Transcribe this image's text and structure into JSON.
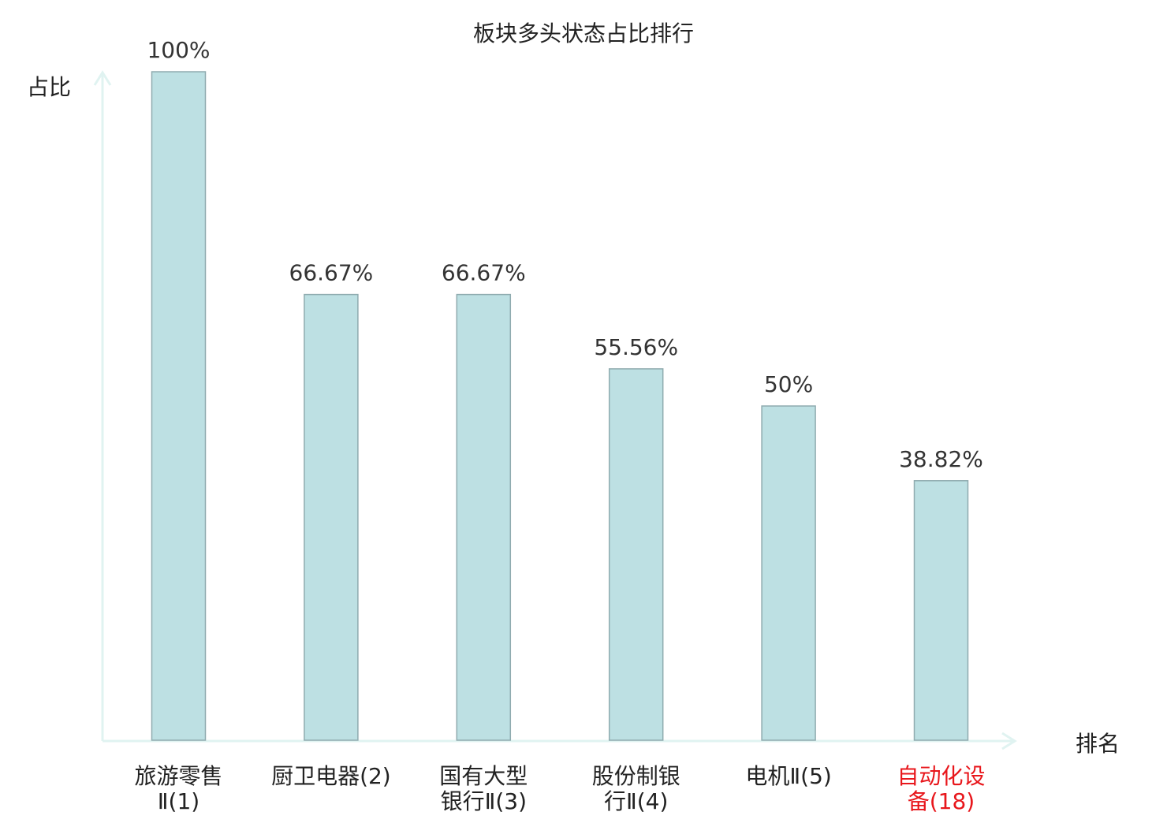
{
  "chart_data": {
    "type": "bar",
    "title": "板块多头状态占比排行",
    "ylabel": "占比",
    "xlabel": "排名",
    "ylim": [
      0,
      100
    ],
    "grid": false,
    "categories": [
      [
        "旅游零售",
        "Ⅱ(1)"
      ],
      [
        "厨卫电器(2)"
      ],
      [
        "国有大型",
        "银行Ⅱ(3)"
      ],
      [
        "股份制银",
        "行Ⅱ(4)"
      ],
      [
        "电机Ⅱ(5)"
      ],
      [
        "自动化设",
        "备(18)"
      ]
    ],
    "values": [
      100,
      66.67,
      66.67,
      55.56,
      50,
      38.82
    ],
    "value_labels": [
      "100%",
      "66.67%",
      "66.67%",
      "55.56%",
      "50%",
      "38.82%"
    ],
    "highlight_index": 5,
    "colors": {
      "bar_fill": "#bde0e3",
      "bar_stroke": "#8fabaf",
      "axis": "#e0f3f1",
      "text": "#333333",
      "highlight_text": "#e8161b"
    }
  }
}
